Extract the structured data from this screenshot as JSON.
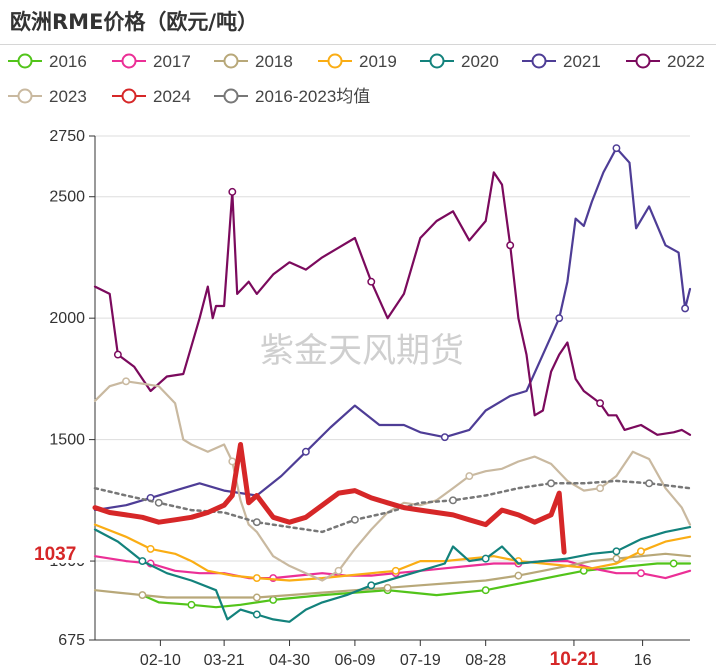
{
  "chart_data": {
    "type": "line",
    "title": "欧洲RME价格（欧元/吨）",
    "watermark": "紫金天风期货",
    "y_axis": {
      "min": 675,
      "max": 2750,
      "ticks": [
        675,
        1000,
        1500,
        2000,
        2500,
        2750
      ]
    },
    "x_axis": {
      "range_days": [
        1,
        365
      ],
      "ticks": [
        {
          "label": "02-10",
          "day": 41
        },
        {
          "label": "03-21",
          "day": 80
        },
        {
          "label": "04-30",
          "day": 120
        },
        {
          "label": "06-09",
          "day": 160
        },
        {
          "label": "07-19",
          "day": 200
        },
        {
          "label": "08-28",
          "day": 240
        },
        {
          "label": "10-21",
          "day": 294
        },
        {
          "label": "16",
          "day": 336
        }
      ],
      "highlight_tick": "10-21"
    },
    "callout": {
      "text": "1037",
      "value": 1037
    },
    "series": [
      {
        "name": "2016",
        "color": "#52c41a",
        "points": [
          [
            30,
            860
          ],
          [
            40,
            830
          ],
          [
            60,
            820
          ],
          [
            75,
            810
          ],
          [
            90,
            820
          ],
          [
            100,
            830
          ],
          [
            110,
            840
          ],
          [
            125,
            850
          ],
          [
            140,
            860
          ],
          [
            160,
            870
          ],
          [
            180,
            880
          ],
          [
            195,
            870
          ],
          [
            210,
            860
          ],
          [
            225,
            870
          ],
          [
            240,
            880
          ],
          [
            255,
            900
          ],
          [
            270,
            920
          ],
          [
            285,
            940
          ],
          [
            300,
            960
          ],
          [
            315,
            970
          ],
          [
            330,
            980
          ],
          [
            345,
            990
          ],
          [
            355,
            990
          ],
          [
            365,
            990
          ]
        ]
      },
      {
        "name": "2017",
        "color": "#eb2f96",
        "points": [
          [
            1,
            1020
          ],
          [
            20,
            1000
          ],
          [
            35,
            990
          ],
          [
            50,
            960
          ],
          [
            65,
            950
          ],
          [
            80,
            950
          ],
          [
            95,
            930
          ],
          [
            110,
            930
          ],
          [
            125,
            940
          ],
          [
            140,
            950
          ],
          [
            155,
            940
          ],
          [
            170,
            940
          ],
          [
            185,
            950
          ],
          [
            200,
            960
          ],
          [
            215,
            970
          ],
          [
            230,
            980
          ],
          [
            245,
            990
          ],
          [
            260,
            990
          ],
          [
            275,
            1000
          ],
          [
            290,
            1000
          ],
          [
            305,
            970
          ],
          [
            320,
            950
          ],
          [
            335,
            950
          ],
          [
            350,
            930
          ],
          [
            365,
            960
          ]
        ]
      },
      {
        "name": "2018",
        "color": "#b8a879",
        "points": [
          [
            1,
            880
          ],
          [
            15,
            870
          ],
          [
            30,
            860
          ],
          [
            45,
            850
          ],
          [
            60,
            850
          ],
          [
            80,
            850
          ],
          [
            100,
            850
          ],
          [
            120,
            860
          ],
          [
            140,
            870
          ],
          [
            160,
            880
          ],
          [
            180,
            890
          ],
          [
            200,
            900
          ],
          [
            220,
            910
          ],
          [
            240,
            920
          ],
          [
            260,
            940
          ],
          [
            275,
            960
          ],
          [
            290,
            980
          ],
          [
            305,
            1000
          ],
          [
            320,
            1010
          ],
          [
            335,
            1020
          ],
          [
            350,
            1030
          ],
          [
            365,
            1020
          ]
        ]
      },
      {
        "name": "2019",
        "color": "#faad14",
        "points": [
          [
            1,
            1150
          ],
          [
            20,
            1100
          ],
          [
            35,
            1050
          ],
          [
            50,
            1030
          ],
          [
            60,
            1000
          ],
          [
            70,
            960
          ],
          [
            85,
            940
          ],
          [
            100,
            930
          ],
          [
            120,
            920
          ],
          [
            140,
            930
          ],
          [
            155,
            940
          ],
          [
            170,
            950
          ],
          [
            185,
            960
          ],
          [
            200,
            1000
          ],
          [
            215,
            1000
          ],
          [
            230,
            1010
          ],
          [
            245,
            1020
          ],
          [
            260,
            1000
          ],
          [
            275,
            990
          ],
          [
            290,
            980
          ],
          [
            305,
            970
          ],
          [
            320,
            990
          ],
          [
            335,
            1040
          ],
          [
            350,
            1080
          ],
          [
            365,
            1100
          ]
        ]
      },
      {
        "name": "2020",
        "color": "#13827c",
        "points": [
          [
            1,
            1130
          ],
          [
            15,
            1080
          ],
          [
            30,
            1000
          ],
          [
            45,
            950
          ],
          [
            60,
            920
          ],
          [
            75,
            880
          ],
          [
            82,
            760
          ],
          [
            90,
            800
          ],
          [
            100,
            780
          ],
          [
            110,
            760
          ],
          [
            120,
            750
          ],
          [
            130,
            800
          ],
          [
            140,
            830
          ],
          [
            155,
            860
          ],
          [
            170,
            900
          ],
          [
            185,
            930
          ],
          [
            200,
            960
          ],
          [
            215,
            990
          ],
          [
            220,
            1060
          ],
          [
            230,
            1000
          ],
          [
            240,
            1010
          ],
          [
            250,
            1060
          ],
          [
            260,
            990
          ],
          [
            275,
            1000
          ],
          [
            290,
            1010
          ],
          [
            305,
            1030
          ],
          [
            320,
            1040
          ],
          [
            335,
            1090
          ],
          [
            350,
            1120
          ],
          [
            365,
            1140
          ]
        ]
      },
      {
        "name": "2021",
        "color": "#4e3d96",
        "points": [
          [
            1,
            1210
          ],
          [
            20,
            1230
          ],
          [
            35,
            1260
          ],
          [
            50,
            1290
          ],
          [
            65,
            1320
          ],
          [
            80,
            1290
          ],
          [
            100,
            1270
          ],
          [
            115,
            1350
          ],
          [
            130,
            1450
          ],
          [
            145,
            1550
          ],
          [
            160,
            1640
          ],
          [
            175,
            1560
          ],
          [
            190,
            1560
          ],
          [
            200,
            1530
          ],
          [
            215,
            1510
          ],
          [
            230,
            1540
          ],
          [
            240,
            1620
          ],
          [
            255,
            1680
          ],
          [
            265,
            1700
          ],
          [
            275,
            1850
          ],
          [
            285,
            2000
          ],
          [
            290,
            2150
          ],
          [
            295,
            2410
          ],
          [
            300,
            2380
          ],
          [
            305,
            2480
          ],
          [
            312,
            2600
          ],
          [
            320,
            2700
          ],
          [
            328,
            2640
          ],
          [
            332,
            2370
          ],
          [
            340,
            2460
          ],
          [
            350,
            2300
          ],
          [
            358,
            2270
          ],
          [
            362,
            2040
          ],
          [
            365,
            2120
          ]
        ]
      },
      {
        "name": "2022",
        "color": "#7b0a5d",
        "points": [
          [
            1,
            2130
          ],
          [
            10,
            2100
          ],
          [
            15,
            1850
          ],
          [
            25,
            1800
          ],
          [
            35,
            1700
          ],
          [
            45,
            1760
          ],
          [
            55,
            1770
          ],
          [
            65,
            2000
          ],
          [
            70,
            2130
          ],
          [
            73,
            2000
          ],
          [
            75,
            2050
          ],
          [
            80,
            2050
          ],
          [
            85,
            2520
          ],
          [
            88,
            2100
          ],
          [
            95,
            2150
          ],
          [
            100,
            2100
          ],
          [
            110,
            2180
          ],
          [
            120,
            2230
          ],
          [
            130,
            2200
          ],
          [
            140,
            2250
          ],
          [
            150,
            2290
          ],
          [
            160,
            2330
          ],
          [
            170,
            2150
          ],
          [
            180,
            2000
          ],
          [
            190,
            2100
          ],
          [
            200,
            2330
          ],
          [
            210,
            2400
          ],
          [
            220,
            2440
          ],
          [
            230,
            2320
          ],
          [
            240,
            2400
          ],
          [
            245,
            2600
          ],
          [
            250,
            2550
          ],
          [
            255,
            2300
          ],
          [
            260,
            2000
          ],
          [
            265,
            1850
          ],
          [
            270,
            1600
          ],
          [
            275,
            1620
          ],
          [
            280,
            1780
          ],
          [
            285,
            1850
          ],
          [
            290,
            1900
          ],
          [
            295,
            1750
          ],
          [
            300,
            1700
          ],
          [
            310,
            1650
          ],
          [
            315,
            1600
          ],
          [
            320,
            1600
          ],
          [
            325,
            1540
          ],
          [
            335,
            1560
          ],
          [
            345,
            1520
          ],
          [
            355,
            1530
          ],
          [
            360,
            1540
          ],
          [
            365,
            1520
          ]
        ]
      },
      {
        "name": "2023",
        "color": "#c9b9a0",
        "points": [
          [
            1,
            1660
          ],
          [
            10,
            1720
          ],
          [
            20,
            1740
          ],
          [
            30,
            1730
          ],
          [
            40,
            1720
          ],
          [
            50,
            1650
          ],
          [
            55,
            1500
          ],
          [
            60,
            1480
          ],
          [
            70,
            1450
          ],
          [
            80,
            1480
          ],
          [
            85,
            1410
          ],
          [
            90,
            1250
          ],
          [
            95,
            1150
          ],
          [
            100,
            1120
          ],
          [
            110,
            1020
          ],
          [
            120,
            980
          ],
          [
            130,
            950
          ],
          [
            140,
            920
          ],
          [
            150,
            960
          ],
          [
            160,
            1050
          ],
          [
            170,
            1130
          ],
          [
            180,
            1200
          ],
          [
            190,
            1240
          ],
          [
            200,
            1230
          ],
          [
            210,
            1250
          ],
          [
            220,
            1300
          ],
          [
            230,
            1350
          ],
          [
            240,
            1370
          ],
          [
            250,
            1380
          ],
          [
            260,
            1410
          ],
          [
            270,
            1430
          ],
          [
            280,
            1400
          ],
          [
            290,
            1330
          ],
          [
            300,
            1290
          ],
          [
            310,
            1300
          ],
          [
            320,
            1350
          ],
          [
            330,
            1450
          ],
          [
            340,
            1420
          ],
          [
            350,
            1300
          ],
          [
            360,
            1220
          ],
          [
            365,
            1150
          ]
        ]
      },
      {
        "name": "2024",
        "color": "#d62728",
        "points": [
          [
            1,
            1220
          ],
          [
            10,
            1200
          ],
          [
            20,
            1190
          ],
          [
            30,
            1180
          ],
          [
            40,
            1160
          ],
          [
            50,
            1170
          ],
          [
            60,
            1180
          ],
          [
            70,
            1200
          ],
          [
            80,
            1230
          ],
          [
            85,
            1270
          ],
          [
            90,
            1480
          ],
          [
            95,
            1240
          ],
          [
            100,
            1270
          ],
          [
            110,
            1180
          ],
          [
            120,
            1160
          ],
          [
            130,
            1180
          ],
          [
            140,
            1230
          ],
          [
            150,
            1280
          ],
          [
            160,
            1290
          ],
          [
            170,
            1260
          ],
          [
            180,
            1240
          ],
          [
            190,
            1220
          ],
          [
            200,
            1210
          ],
          [
            210,
            1200
          ],
          [
            220,
            1190
          ],
          [
            230,
            1170
          ],
          [
            240,
            1150
          ],
          [
            250,
            1210
          ],
          [
            260,
            1190
          ],
          [
            270,
            1160
          ],
          [
            280,
            1190
          ],
          [
            285,
            1280
          ],
          [
            288,
            1037
          ]
        ]
      },
      {
        "name": "2016-2023均值",
        "color": "#777777",
        "dashed": true,
        "points": [
          [
            1,
            1300
          ],
          [
            20,
            1270
          ],
          [
            40,
            1240
          ],
          [
            60,
            1210
          ],
          [
            80,
            1200
          ],
          [
            100,
            1160
          ],
          [
            120,
            1140
          ],
          [
            140,
            1120
          ],
          [
            160,
            1170
          ],
          [
            180,
            1200
          ],
          [
            200,
            1240
          ],
          [
            220,
            1250
          ],
          [
            240,
            1270
          ],
          [
            260,
            1300
          ],
          [
            280,
            1320
          ],
          [
            300,
            1320
          ],
          [
            320,
            1330
          ],
          [
            340,
            1320
          ],
          [
            365,
            1300
          ]
        ]
      }
    ]
  }
}
